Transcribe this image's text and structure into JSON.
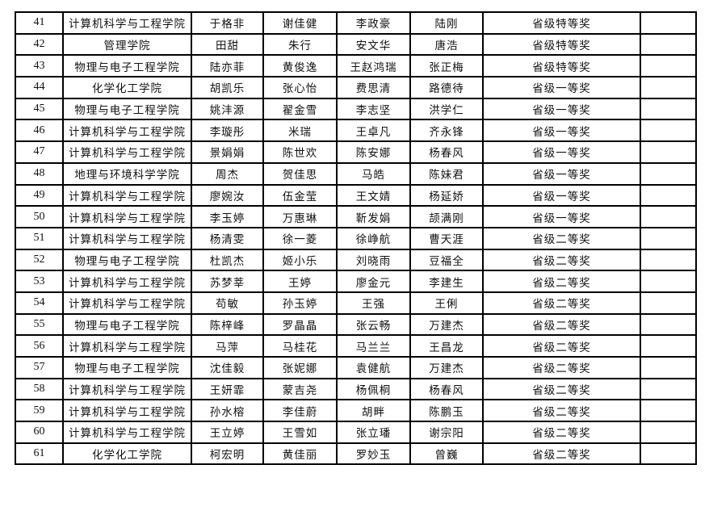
{
  "rows": [
    {
      "no": "41",
      "college": "计算机科学与工程学院",
      "m1": "于格非",
      "m2": "谢佳健",
      "m3": "李政豪",
      "advisor": "陆刚",
      "award": "省级特等奖",
      "note": ""
    },
    {
      "no": "42",
      "college": "管理学院",
      "m1": "田甜",
      "m2": "朱行",
      "m3": "安文华",
      "advisor": "唐浩",
      "award": "省级特等奖",
      "note": ""
    },
    {
      "no": "43",
      "college": "物理与电子工程学院",
      "m1": "陆亦菲",
      "m2": "黄俊逸",
      "m3": "王赵鸿瑞",
      "advisor": "张正梅",
      "award": "省级特等奖",
      "note": ""
    },
    {
      "no": "44",
      "college": "化学化工学院",
      "m1": "胡凯乐",
      "m2": "张心怡",
      "m3": "费思清",
      "advisor": "路德待",
      "award": "省级一等奖",
      "note": ""
    },
    {
      "no": "45",
      "college": "物理与电子工程学院",
      "m1": "姚沣源",
      "m2": "翟金雪",
      "m3": "李志坚",
      "advisor": "洪学仁",
      "award": "省级一等奖",
      "note": ""
    },
    {
      "no": "46",
      "college": "计算机科学与工程学院",
      "m1": "李璇彤",
      "m2": "米瑞",
      "m3": "王卓凡",
      "advisor": "齐永锋",
      "award": "省级一等奖",
      "note": ""
    },
    {
      "no": "47",
      "college": "计算机科学与工程学院",
      "m1": "景娟娟",
      "m2": "陈世欢",
      "m3": "陈安娜",
      "advisor": "杨春风",
      "award": "省级一等奖",
      "note": ""
    },
    {
      "no": "48",
      "college": "地理与环境科学学院",
      "m1": "周杰",
      "m2": "贺佳思",
      "m3": "马皓",
      "advisor": "陈妹君",
      "award": "省级一等奖",
      "note": ""
    },
    {
      "no": "49",
      "college": "计算机科学与工程学院",
      "m1": "廖婉汝",
      "m2": "伍金莹",
      "m3": "王文婧",
      "advisor": "杨延娇",
      "award": "省级一等奖",
      "note": ""
    },
    {
      "no": "50",
      "college": "计算机科学与工程学院",
      "m1": "李玉婷",
      "m2": "万惠琳",
      "m3": "靳发娟",
      "advisor": "颉满刚",
      "award": "省级一等奖",
      "note": ""
    },
    {
      "no": "51",
      "college": "计算机科学与工程学院",
      "m1": "杨清雯",
      "m2": "徐一菱",
      "m3": "徐峥航",
      "advisor": "曹天涯",
      "award": "省级二等奖",
      "note": ""
    },
    {
      "no": "52",
      "college": "物理与电子工程学院",
      "m1": "杜凯杰",
      "m2": "姬小乐",
      "m3": "刘晓雨",
      "advisor": "豆福全",
      "award": "省级二等奖",
      "note": ""
    },
    {
      "no": "53",
      "college": "计算机科学与工程学院",
      "m1": "苏梦莘",
      "m2": "王婷",
      "m3": "廖金元",
      "advisor": "李建生",
      "award": "省级二等奖",
      "note": ""
    },
    {
      "no": "54",
      "college": "计算机科学与工程学院",
      "m1": "苟敏",
      "m2": "孙玉婷",
      "m3": "王强",
      "advisor": "王俐",
      "award": "省级二等奖",
      "note": ""
    },
    {
      "no": "55",
      "college": "物理与电子工程学院",
      "m1": "陈梓峰",
      "m2": "罗晶晶",
      "m3": "张云畅",
      "advisor": "万建杰",
      "award": "省级二等奖",
      "note": ""
    },
    {
      "no": "56",
      "college": "计算机科学与工程学院",
      "m1": "马萍",
      "m2": "马桂花",
      "m3": "马兰兰",
      "advisor": "王昌龙",
      "award": "省级二等奖",
      "note": ""
    },
    {
      "no": "57",
      "college": "物理与电子工程学院",
      "m1": "沈佳毅",
      "m2": "张妮娜",
      "m3": "袁健航",
      "advisor": "万建杰",
      "award": "省级二等奖",
      "note": ""
    },
    {
      "no": "58",
      "college": "计算机科学与工程学院",
      "m1": "王妍霏",
      "m2": "蒙吉尧",
      "m3": "杨佩桐",
      "advisor": "杨春风",
      "award": "省级二等奖",
      "note": ""
    },
    {
      "no": "59",
      "college": "计算机科学与工程学院",
      "m1": "孙水榕",
      "m2": "李佳蔚",
      "m3": "胡畔",
      "advisor": "陈鹏玉",
      "award": "省级二等奖",
      "note": ""
    },
    {
      "no": "60",
      "college": "计算机科学与工程学院",
      "m1": "王立婷",
      "m2": "王雪如",
      "m3": "张立璠",
      "advisor": "谢宗阳",
      "award": "省级二等奖",
      "note": ""
    },
    {
      "no": "61",
      "college": "化学化工学院",
      "m1": "柯宏明",
      "m2": "黄佳丽",
      "m3": "罗妙玉",
      "advisor": "曾巍",
      "award": "省级二等奖",
      "note": ""
    }
  ]
}
